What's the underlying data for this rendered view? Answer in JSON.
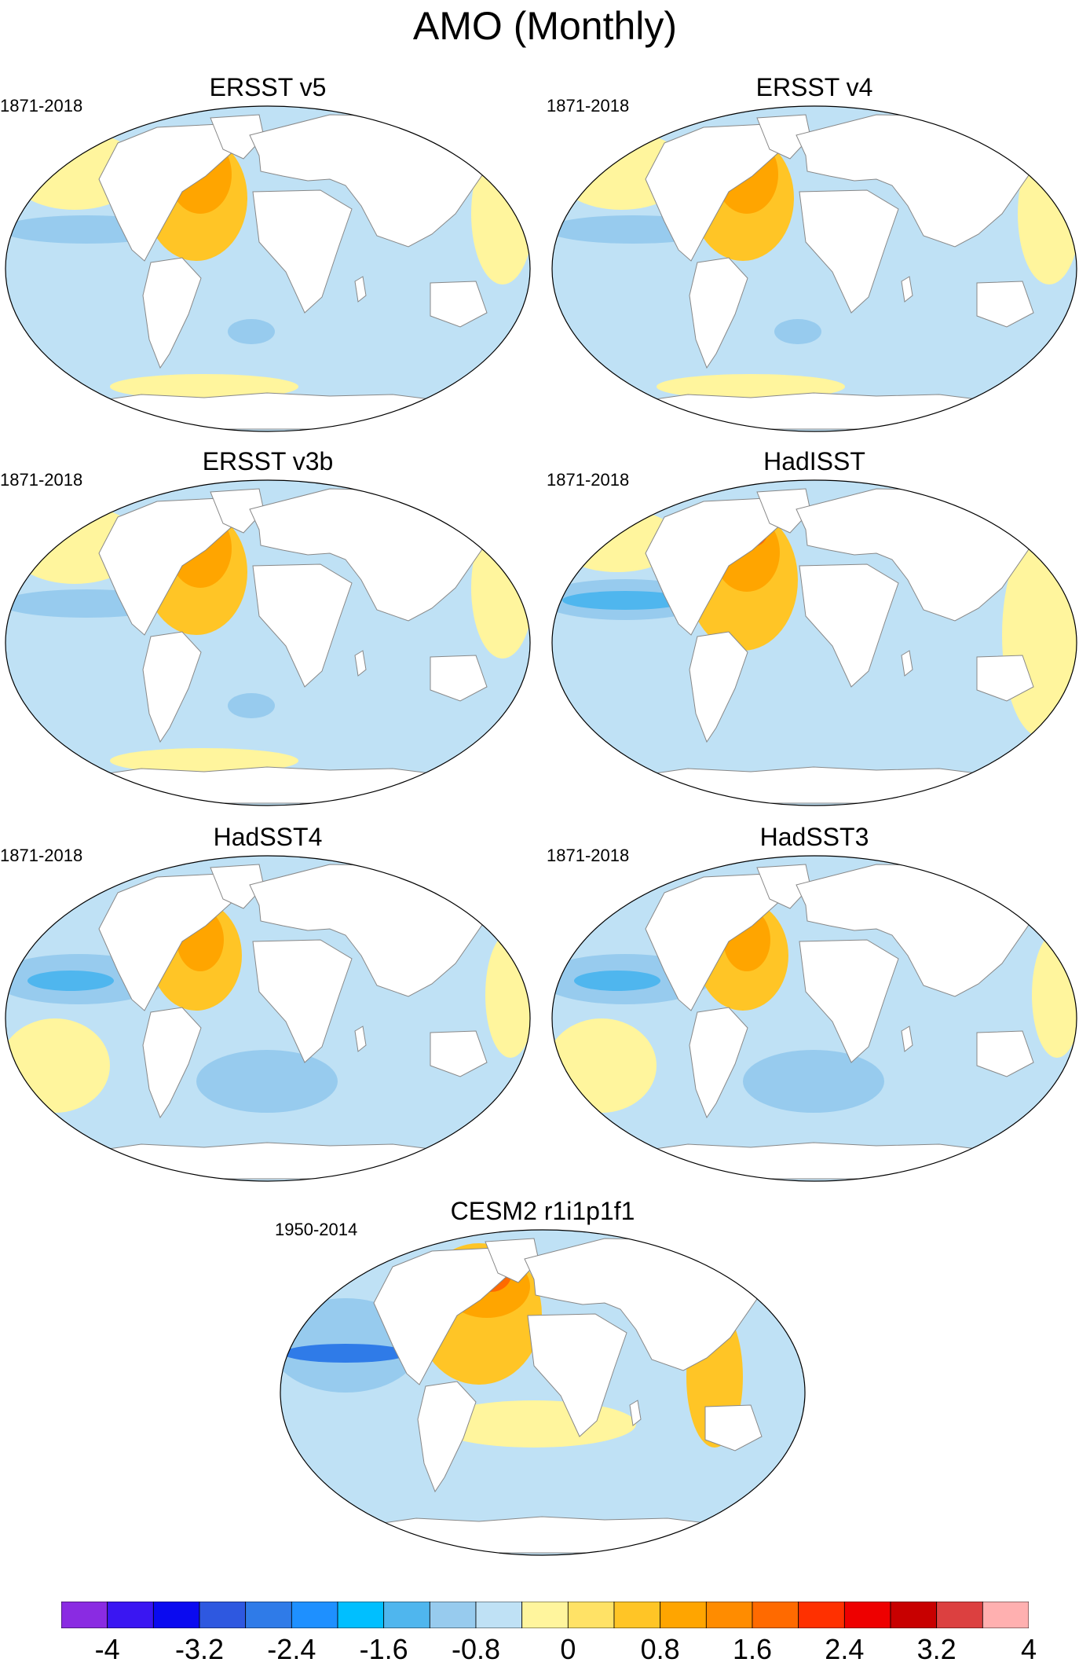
{
  "title": "AMO (Monthly)",
  "panels": [
    {
      "title": "ERSST v5",
      "period": "1871-2018"
    },
    {
      "title": "ERSST v4",
      "period": "1871-2018"
    },
    {
      "title": "ERSST v3b",
      "period": "1871-2018"
    },
    {
      "title": "HadISST",
      "period": "1871-2018"
    },
    {
      "title": "HadSST4",
      "period": "1871-2018"
    },
    {
      "title": "HadSST3",
      "period": "1871-2018"
    },
    {
      "title": "CESM2 r1i1p1f1",
      "period": "1950-2014"
    }
  ],
  "colorbar": {
    "labels": [
      "-4",
      "-3.2",
      "-2.4",
      "-1.6",
      "-0.8",
      "0",
      "0.8",
      "1.6",
      "2.4",
      "3.2",
      "4"
    ],
    "colors": [
      "#8a2be2",
      "#3a16f2",
      "#0a0af0",
      "#2e58e0",
      "#2f7be8",
      "#1e90ff",
      "#00bfff",
      "#4fb6ee",
      "#97cbee",
      "#bfe1f5",
      "#fff59d",
      "#ffe266",
      "#ffc526",
      "#ffa500",
      "#ff8c00",
      "#ff6a00",
      "#ff3000",
      "#ee0000",
      "#c80000",
      "#dc4040",
      "#ffb0b0"
    ]
  },
  "map_colors": {
    "ocean_neutral_pos": "#fff59d",
    "ocean_neutral_neg": "#bfe1f5",
    "land": "#ffffff",
    "warm_1": "#ffc526",
    "warm_2": "#ffa500",
    "warm_3": "#ff6a00",
    "warm_4": "#ee0000",
    "cool_1": "#97cbee",
    "cool_2": "#4fb6ee",
    "cool_3": "#2f7be8"
  }
}
